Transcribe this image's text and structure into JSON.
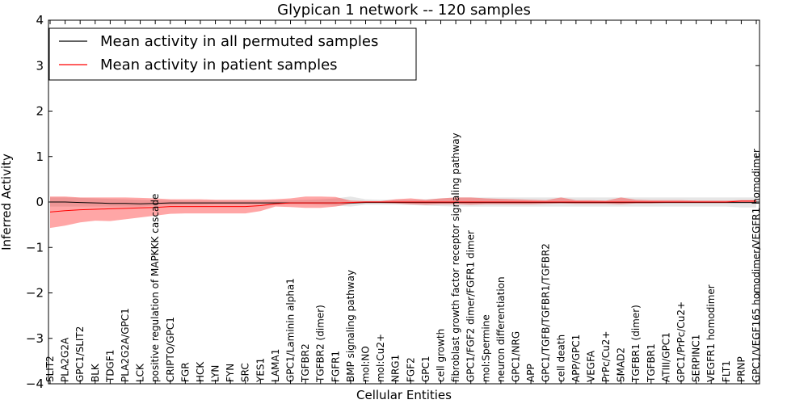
{
  "chart_data": {
    "type": "line",
    "title": "Glypican 1 network -- 120 samples",
    "xlabel": "Cellular Entities",
    "ylabel": "Inferred Activity",
    "ylim": [
      -4,
      4
    ],
    "yticks": [
      "−4",
      "−3",
      "−2",
      "−1",
      "0",
      "1",
      "2",
      "3",
      "4"
    ],
    "yticks_values": [
      -4,
      -3,
      -2,
      -1,
      0,
      1,
      2,
      3,
      4
    ],
    "categories": [
      "SLIT2",
      "PLA2G2A",
      "GPC1/SLIT2",
      "BLK",
      "TDGF1",
      "PLA2G2A/GPC1",
      "LCK",
      "positive regulation of MAPKKK cascade",
      "CRIPTO/GPC1",
      "FGR",
      "HCK",
      "LYN",
      "FYN",
      "SRC",
      "YES1",
      "LAMA1",
      "GPC1/Laminin alpha1",
      "TGFBR2",
      "TGFBR2 (dimer)",
      "FGFR1",
      "BMP signaling pathway",
      "mol:NO",
      "mol:Cu2+",
      "NRG1",
      "FGF2",
      "GPC1",
      "cell growth",
      "fibroblast growth factor receptor signaling pathway",
      "GPC1/FGF2 dimer/FGFR1 dimer",
      "mol:Spermine",
      "neuron differentiation",
      "GPC1/NRG",
      "APP",
      "GPC1/TGFB/TGFBR1/TGFBR2",
      "cell death",
      "APP/GPC1",
      "VEGFA",
      "PrPc/Cu2+",
      "SMAD2",
      "TGFBR1 (dimer)",
      "TGFBR1",
      "ATIII/GPC1",
      "GPC1/PrPc/Cu2+",
      "SERPINC1",
      "VEGFR1 homodimer",
      "FLT1",
      "PRNP",
      "GPC1/VEGF165 homodimer/VEGFR1 homodimer"
    ],
    "series": [
      {
        "name": "Mean activity in all permuted samples",
        "color": "#000000",
        "values": [
          0.0,
          0.0,
          -0.01,
          -0.02,
          -0.03,
          -0.03,
          -0.04,
          -0.03,
          -0.02,
          -0.02,
          -0.02,
          -0.02,
          -0.02,
          -0.02,
          -0.02,
          -0.02,
          -0.02,
          -0.02,
          -0.02,
          -0.02,
          -0.02,
          -0.01,
          -0.01,
          -0.01,
          -0.01,
          -0.01,
          -0.01,
          -0.01,
          -0.01,
          -0.01,
          -0.01,
          -0.01,
          -0.01,
          -0.01,
          -0.01,
          -0.01,
          -0.01,
          -0.01,
          -0.01,
          -0.01,
          -0.01,
          -0.01,
          -0.01,
          -0.01,
          -0.01,
          -0.01,
          -0.01,
          -0.01
        ],
        "band_lower": [
          -0.1,
          -0.1,
          -0.1,
          -0.1,
          -0.1,
          -0.1,
          -0.1,
          -0.08,
          -0.07,
          -0.06,
          -0.06,
          -0.05,
          -0.05,
          -0.05,
          -0.05,
          -0.05,
          -0.05,
          -0.05,
          -0.06,
          -0.08,
          -0.1,
          -0.06,
          -0.06,
          -0.06,
          -0.07,
          -0.08,
          -0.09,
          -0.1,
          -0.1,
          -0.1,
          -0.1,
          -0.1,
          -0.1,
          -0.1,
          -0.1,
          -0.1,
          -0.1,
          -0.1,
          -0.1,
          -0.1,
          -0.1,
          -0.1,
          -0.1,
          -0.1,
          -0.1,
          -0.1,
          -0.12,
          -0.12
        ],
        "band_upper": [
          0.1,
          0.1,
          0.09,
          0.08,
          0.07,
          0.06,
          0.05,
          0.04,
          0.04,
          0.03,
          0.03,
          0.03,
          0.03,
          0.03,
          0.03,
          0.03,
          0.04,
          0.05,
          0.06,
          0.08,
          0.12,
          0.06,
          0.05,
          0.05,
          0.05,
          0.06,
          0.08,
          0.1,
          0.1,
          0.1,
          0.1,
          0.1,
          0.1,
          0.1,
          0.1,
          0.1,
          0.1,
          0.1,
          0.1,
          0.1,
          0.1,
          0.1,
          0.1,
          0.1,
          0.1,
          0.1,
          0.1,
          0.1
        ],
        "band_color": "#c8c8c8"
      },
      {
        "name": "Mean activity in patient samples",
        "color": "#ff0000",
        "values": [
          -0.22,
          -0.19,
          -0.17,
          -0.16,
          -0.15,
          -0.14,
          -0.13,
          -0.12,
          -0.1,
          -0.1,
          -0.1,
          -0.1,
          -0.1,
          -0.1,
          -0.08,
          -0.04,
          -0.02,
          -0.02,
          -0.02,
          -0.02,
          -0.01,
          0.0,
          0.0,
          0.0,
          0.0,
          0.0,
          0.0,
          0.0,
          0.0,
          0.0,
          0.0,
          0.0,
          0.0,
          0.0,
          0.0,
          0.0,
          0.0,
          0.0,
          0.0,
          0.0,
          0.0,
          0.0,
          0.0,
          0.0,
          0.0,
          0.0,
          0.02,
          0.02
        ],
        "band_lower": [
          -0.57,
          -0.52,
          -0.45,
          -0.41,
          -0.42,
          -0.38,
          -0.34,
          -0.3,
          -0.26,
          -0.25,
          -0.25,
          -0.25,
          -0.25,
          -0.25,
          -0.2,
          -0.1,
          -0.11,
          -0.13,
          -0.13,
          -0.1,
          -0.04,
          -0.02,
          -0.02,
          -0.03,
          -0.05,
          -0.06,
          -0.05,
          -0.05,
          -0.06,
          -0.05,
          -0.05,
          -0.05,
          -0.05,
          -0.04,
          -0.03,
          -0.04,
          -0.04,
          -0.04,
          -0.05,
          -0.03,
          -0.03,
          -0.02,
          -0.02,
          -0.02,
          -0.02,
          -0.02,
          -0.02,
          -0.02
        ],
        "band_upper": [
          0.12,
          0.12,
          0.1,
          0.1,
          0.1,
          0.1,
          0.09,
          0.08,
          0.06,
          0.06,
          0.06,
          0.05,
          0.05,
          0.05,
          0.05,
          0.06,
          0.08,
          0.12,
          0.12,
          0.11,
          0.03,
          0.02,
          0.02,
          0.06,
          0.08,
          0.05,
          0.08,
          0.1,
          0.1,
          0.08,
          0.07,
          0.06,
          0.05,
          0.04,
          0.1,
          0.04,
          0.04,
          0.03,
          0.1,
          0.05,
          0.04,
          0.04,
          0.04,
          0.03,
          0.03,
          0.03,
          0.04,
          0.04
        ],
        "band_color": "#ff0000"
      }
    ],
    "legend_position": "top-left",
    "grid": false
  }
}
